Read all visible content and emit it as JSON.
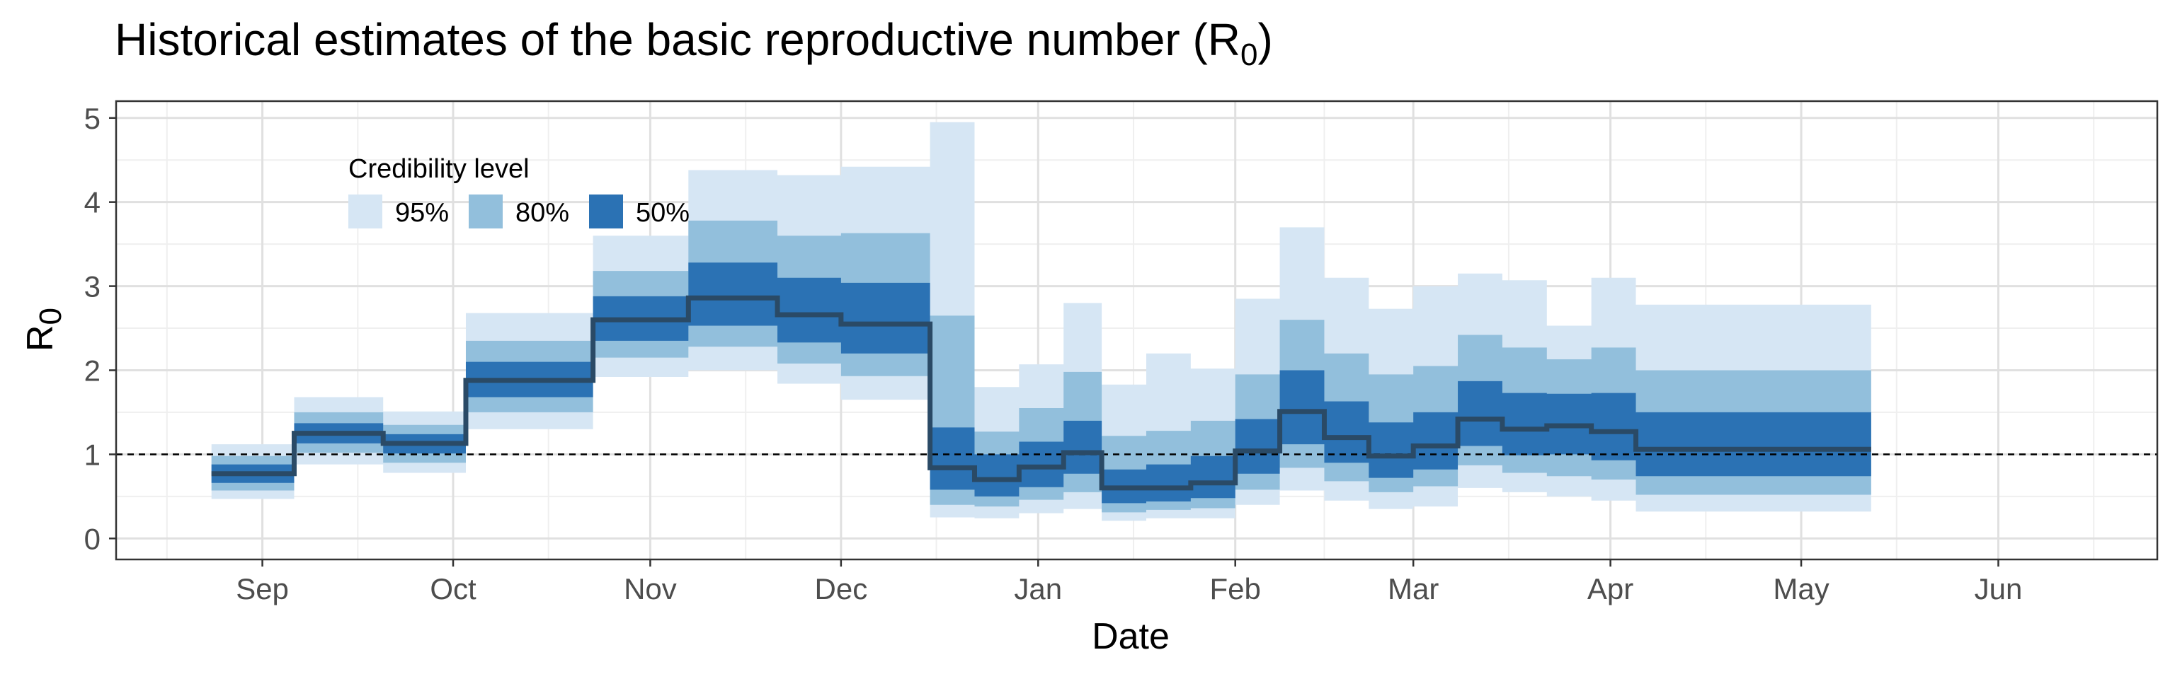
{
  "chart_data": {
    "type": "area",
    "title": "Historical estimates of the basic reproductive number (R",
    "title_subscript": "0",
    "title_close": ")",
    "xlabel": "Date",
    "ylabel": "R",
    "ylabel_subscript": "0",
    "ylim": [
      -0.25,
      5.2
    ],
    "y_ticks": [
      0,
      1,
      2,
      3,
      4,
      5
    ],
    "xlim": [
      "2020-08-09",
      "2021-06-26"
    ],
    "x_ticks": [
      {
        "date": "2020-09-01",
        "label": "Sep"
      },
      {
        "date": "2020-10-01",
        "label": "Oct"
      },
      {
        "date": "2020-11-01",
        "label": "Nov"
      },
      {
        "date": "2020-12-01",
        "label": "Dec"
      },
      {
        "date": "2021-01-01",
        "label": "Jan"
      },
      {
        "date": "2021-02-01",
        "label": "Feb"
      },
      {
        "date": "2021-03-01",
        "label": "Mar"
      },
      {
        "date": "2021-04-01",
        "label": "Apr"
      },
      {
        "date": "2021-05-01",
        "label": "May"
      },
      {
        "date": "2021-06-01",
        "label": "Jun"
      }
    ],
    "x_minor_ticks": [
      "2020-08-17",
      "2020-09-16",
      "2020-10-16",
      "2020-11-16",
      "2020-12-16",
      "2021-01-16",
      "2021-02-15",
      "2021-03-16",
      "2021-04-16",
      "2021-05-16",
      "2021-06-16"
    ],
    "reference_line": {
      "y": 1,
      "style": "dashed",
      "color": "#000000"
    },
    "grid": true,
    "legend": {
      "title": "Credibility level",
      "position": "top-left inside",
      "entries": [
        {
          "label": "95%",
          "color": "#d6e6f4"
        },
        {
          "label": "80%",
          "color": "#92bfdc"
        },
        {
          "label": "50%",
          "color": "#2b72b4"
        }
      ]
    },
    "colors": {
      "band95": "#d6e6f4",
      "band80": "#92bfdc",
      "band50": "#2b72b4",
      "median": "#2a4a66",
      "grid_major": "#e0e0e0",
      "grid_minor": "#efefef",
      "panel_border": "#333333"
    },
    "steps": [
      {
        "start": "2020-08-24",
        "end": "2020-09-06",
        "median": 0.77,
        "lo50": 0.66,
        "hi50": 0.88,
        "lo80": 0.57,
        "hi80": 0.98,
        "lo95": 0.47,
        "hi95": 1.12
      },
      {
        "start": "2020-09-06",
        "end": "2020-09-20",
        "median": 1.25,
        "lo50": 1.13,
        "hi50": 1.37,
        "lo80": 1.02,
        "hi80": 1.5,
        "lo95": 0.88,
        "hi95": 1.68
      },
      {
        "start": "2020-09-20",
        "end": "2020-10-03",
        "median": 1.13,
        "lo50": 1.01,
        "hi50": 1.24,
        "lo80": 0.9,
        "hi80": 1.35,
        "lo95": 0.78,
        "hi95": 1.51
      },
      {
        "start": "2020-10-03",
        "end": "2020-10-23",
        "median": 1.88,
        "lo50": 1.68,
        "hi50": 2.1,
        "lo80": 1.5,
        "hi80": 2.35,
        "lo95": 1.3,
        "hi95": 2.68
      },
      {
        "start": "2020-10-23",
        "end": "2020-11-07",
        "median": 2.6,
        "lo50": 2.35,
        "hi50": 2.88,
        "lo80": 2.15,
        "hi80": 3.18,
        "lo95": 1.92,
        "hi95": 3.6
      },
      {
        "start": "2020-11-07",
        "end": "2020-11-21",
        "median": 2.86,
        "lo50": 2.53,
        "hi50": 3.28,
        "lo80": 2.28,
        "hi80": 3.78,
        "lo95": 2.0,
        "hi95": 4.38
      },
      {
        "start": "2020-11-21",
        "end": "2020-12-01",
        "median": 2.66,
        "lo50": 2.33,
        "hi50": 3.1,
        "lo80": 2.08,
        "hi80": 3.6,
        "lo95": 1.84,
        "hi95": 4.32
      },
      {
        "start": "2020-12-01",
        "end": "2020-12-15",
        "median": 2.55,
        "lo50": 2.2,
        "hi50": 3.04,
        "lo80": 1.93,
        "hi80": 3.63,
        "lo95": 1.65,
        "hi95": 4.42
      },
      {
        "start": "2020-12-15",
        "end": "2020-12-22",
        "median": 0.84,
        "lo50": 0.58,
        "hi50": 1.32,
        "lo80": 0.4,
        "hi80": 2.65,
        "lo95": 0.25,
        "hi95": 4.95
      },
      {
        "start": "2020-12-22",
        "end": "2020-12-29",
        "median": 0.7,
        "lo50": 0.5,
        "hi50": 1.0,
        "lo80": 0.38,
        "hi80": 1.27,
        "lo95": 0.24,
        "hi95": 1.8
      },
      {
        "start": "2020-12-29",
        "end": "2021-01-05",
        "median": 0.85,
        "lo50": 0.61,
        "hi50": 1.15,
        "lo80": 0.46,
        "hi80": 1.55,
        "lo95": 0.3,
        "hi95": 2.07
      },
      {
        "start": "2021-01-05",
        "end": "2021-01-11",
        "median": 1.02,
        "lo50": 0.77,
        "hi50": 1.4,
        "lo80": 0.55,
        "hi80": 1.98,
        "lo95": 0.35,
        "hi95": 2.8
      },
      {
        "start": "2021-01-11",
        "end": "2021-01-18",
        "median": 0.6,
        "lo50": 0.42,
        "hi50": 0.82,
        "lo80": 0.31,
        "hi80": 1.22,
        "lo95": 0.21,
        "hi95": 1.83
      },
      {
        "start": "2021-01-18",
        "end": "2021-01-25",
        "median": 0.6,
        "lo50": 0.44,
        "hi50": 0.88,
        "lo80": 0.34,
        "hi80": 1.28,
        "lo95": 0.24,
        "hi95": 2.2
      },
      {
        "start": "2021-01-25",
        "end": "2021-02-01",
        "median": 0.66,
        "lo50": 0.48,
        "hi50": 0.98,
        "lo80": 0.36,
        "hi80": 1.4,
        "lo95": 0.24,
        "hi95": 2.02
      },
      {
        "start": "2021-02-01",
        "end": "2021-02-08",
        "median": 1.04,
        "lo50": 0.77,
        "hi50": 1.42,
        "lo80": 0.58,
        "hi80": 1.95,
        "lo95": 0.4,
        "hi95": 2.85
      },
      {
        "start": "2021-02-08",
        "end": "2021-02-15",
        "median": 1.51,
        "lo50": 1.12,
        "hi50": 2.0,
        "lo80": 0.84,
        "hi80": 2.6,
        "lo95": 0.57,
        "hi95": 3.7
      },
      {
        "start": "2021-02-15",
        "end": "2021-02-22",
        "median": 1.2,
        "lo50": 0.9,
        "hi50": 1.63,
        "lo80": 0.68,
        "hi80": 2.2,
        "lo95": 0.45,
        "hi95": 3.1
      },
      {
        "start": "2021-02-22",
        "end": "2021-03-01",
        "median": 0.98,
        "lo50": 0.72,
        "hi50": 1.38,
        "lo80": 0.55,
        "hi80": 1.95,
        "lo95": 0.35,
        "hi95": 2.73
      },
      {
        "start": "2021-03-01",
        "end": "2021-03-08",
        "median": 1.1,
        "lo50": 0.82,
        "hi50": 1.5,
        "lo80": 0.62,
        "hi80": 2.05,
        "lo95": 0.38,
        "hi95": 3.0
      },
      {
        "start": "2021-03-08",
        "end": "2021-03-15",
        "median": 1.42,
        "lo50": 1.1,
        "hi50": 1.87,
        "lo80": 0.87,
        "hi80": 2.42,
        "lo95": 0.6,
        "hi95": 3.15
      },
      {
        "start": "2021-03-15",
        "end": "2021-03-22",
        "median": 1.3,
        "lo50": 0.99,
        "hi50": 1.73,
        "lo80": 0.78,
        "hi80": 2.27,
        "lo95": 0.55,
        "hi95": 3.07
      },
      {
        "start": "2021-03-22",
        "end": "2021-03-29",
        "median": 1.34,
        "lo50": 1.0,
        "hi50": 1.72,
        "lo80": 0.74,
        "hi80": 2.13,
        "lo95": 0.5,
        "hi95": 2.53
      },
      {
        "start": "2021-03-29",
        "end": "2021-04-05",
        "median": 1.27,
        "lo50": 0.93,
        "hi50": 1.73,
        "lo80": 0.7,
        "hi80": 2.27,
        "lo95": 0.45,
        "hi95": 3.1
      },
      {
        "start": "2021-04-05",
        "end": "2021-05-12",
        "median": 1.06,
        "lo50": 0.74,
        "hi50": 1.5,
        "lo80": 0.52,
        "hi80": 2.0,
        "lo95": 0.32,
        "hi95": 2.78
      }
    ]
  }
}
